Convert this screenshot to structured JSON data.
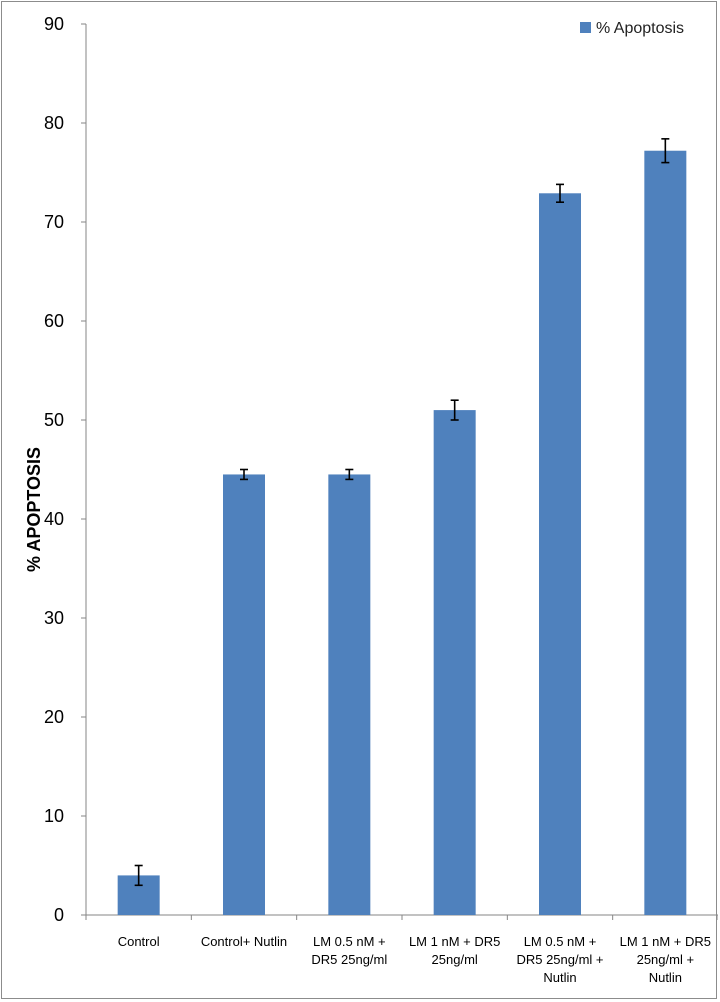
{
  "chart_data": {
    "type": "bar",
    "title": "",
    "xlabel": "",
    "ylabel": "% APOPTOSIS",
    "ylim": [
      0,
      90
    ],
    "yticks": [
      0,
      10,
      20,
      30,
      40,
      50,
      60,
      70,
      80,
      90
    ],
    "grid": false,
    "legend_position": "top-right",
    "categories": [
      [
        "Control"
      ],
      [
        "Control+ Nutlin"
      ],
      [
        "LM 0.5 nM +",
        "DR5 25ng/ml"
      ],
      [
        "LM 1 nM + DR5",
        "25ng/ml"
      ],
      [
        "LM 0.5 nM +",
        "DR5 25ng/ml +",
        "Nutlin"
      ],
      [
        "LM 1 nM + DR5",
        "25ng/ml +",
        "Nutlin"
      ]
    ],
    "series": [
      {
        "name": "% Apoptosis",
        "color": "#4F81BD",
        "values": [
          4.0,
          44.5,
          44.5,
          51.0,
          72.9,
          77.2
        ],
        "errors": [
          1.0,
          0.5,
          0.5,
          1.0,
          0.9,
          1.2
        ]
      }
    ]
  }
}
